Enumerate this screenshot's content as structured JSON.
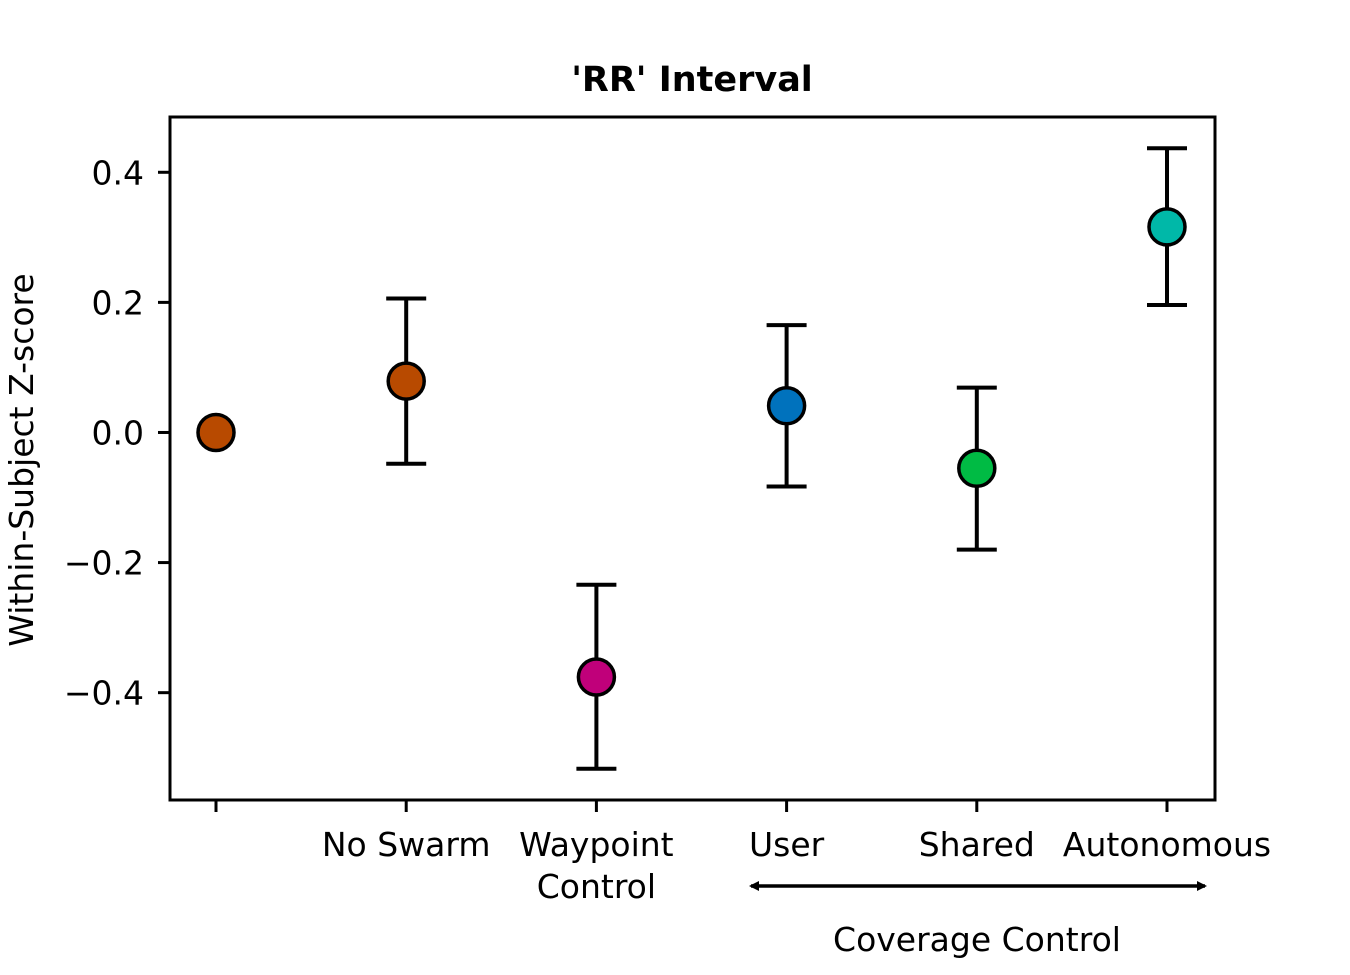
{
  "chart_data": {
    "type": "scatter",
    "title": "'RR' Interval",
    "xlabel": "",
    "ylabel": "Within-Subject Z-score",
    "ylim": [
      -0.565,
      0.485
    ],
    "yticks": [
      {
        "value": 0.4,
        "label": "0.4"
      },
      {
        "value": 0.2,
        "label": "0.2"
      },
      {
        "value": 0.0,
        "label": "0.0"
      },
      {
        "value": -0.2,
        "label": "−0.2"
      },
      {
        "value": -0.4,
        "label": "−0.4"
      }
    ],
    "grid": false,
    "points": [
      {
        "category": "",
        "label_lines": [],
        "y": 0.0,
        "err_low": null,
        "err_high": null,
        "color": "#b84a00"
      },
      {
        "category": "No Swarm",
        "label_lines": [
          "No Swarm"
        ],
        "y": 0.079,
        "err_low": -0.048,
        "err_high": 0.206,
        "color": "#b84a00"
      },
      {
        "category": "Waypoint Control",
        "label_lines": [
          "Waypoint",
          "Control"
        ],
        "y": -0.376,
        "err_low": -0.517,
        "err_high": -0.234,
        "color": "#c0007a"
      },
      {
        "category": "User",
        "label_lines": [
          "User"
        ],
        "y": 0.041,
        "err_low": -0.083,
        "err_high": 0.165,
        "color": "#0072bd"
      },
      {
        "category": "Shared",
        "label_lines": [
          "Shared"
        ],
        "y": -0.055,
        "err_low": -0.18,
        "err_high": 0.069,
        "color": "#00bb44"
      },
      {
        "category": "Autonomous",
        "label_lines": [
          "Autonomous"
        ],
        "y": 0.316,
        "err_low": 0.196,
        "err_high": 0.437,
        "color": "#00b8a8"
      }
    ],
    "group_annotation": {
      "label": "Coverage Control",
      "spans": [
        "User",
        "Shared",
        "Autonomous"
      ],
      "arrow": "double-headed"
    }
  }
}
